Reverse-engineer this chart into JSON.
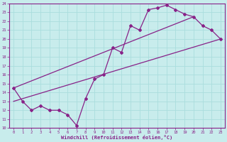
{
  "xlabel": "Windchill (Refroidissement éolien,°C)",
  "bg_color": "#c8ecec",
  "line_color": "#882288",
  "grid_color": "#aadddd",
  "xlim": [
    -0.5,
    23.5
  ],
  "ylim": [
    10,
    24
  ],
  "xticks": [
    0,
    1,
    2,
    3,
    4,
    5,
    6,
    7,
    8,
    9,
    10,
    11,
    12,
    13,
    14,
    15,
    16,
    17,
    18,
    19,
    20,
    21,
    22,
    23
  ],
  "yticks": [
    10,
    11,
    12,
    13,
    14,
    15,
    16,
    17,
    18,
    19,
    20,
    21,
    22,
    23,
    24
  ],
  "zigzag_x": [
    0,
    1,
    2,
    3,
    4,
    5,
    6,
    7,
    8,
    9,
    10,
    11,
    12,
    13,
    14,
    15,
    16,
    17,
    18,
    19,
    20,
    21,
    22,
    23
  ],
  "zigzag_y": [
    14.5,
    13.0,
    12.0,
    12.5,
    12.0,
    12.0,
    11.5,
    10.3,
    13.3,
    15.5,
    16.0,
    19.0,
    18.5,
    21.5,
    21.0,
    23.3,
    23.5,
    23.8,
    23.3,
    22.8,
    22.5,
    21.5,
    21.0,
    20.0
  ],
  "upper_line_x": [
    0,
    20
  ],
  "upper_line_y": [
    14.5,
    22.5
  ],
  "lower_line_x": [
    0,
    23
  ],
  "lower_line_y": [
    13.0,
    20.0
  ]
}
